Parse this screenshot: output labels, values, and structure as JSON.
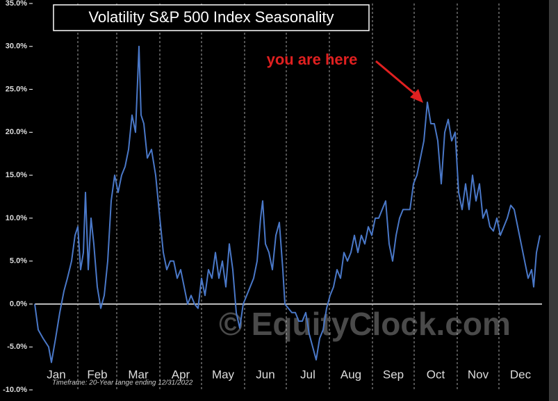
{
  "chart_data": {
    "type": "line",
    "title": "Volatility S&P 500 Index Seasonality",
    "annotation": "you are here",
    "watermark": "© EquityClock.com",
    "footnote": "Timeframe: 20-Year range ending 12/31/2022",
    "x": [
      0,
      2.5,
      6,
      10,
      12,
      15,
      18,
      21,
      23.5,
      26.5,
      29,
      31,
      33,
      35,
      36.5,
      38.5,
      40.5,
      42.5,
      45,
      47.5,
      50,
      52.5,
      55,
      57.5,
      60,
      62.5,
      65,
      67.5,
      70,
      72.5,
      75,
      76.5,
      78.5,
      81,
      84,
      87,
      90,
      92.5,
      95,
      97.5,
      100,
      102.5,
      105,
      107.5,
      110,
      112.5,
      115,
      117.5,
      120,
      122.5,
      125,
      127.5,
      130,
      132.5,
      135,
      137.5,
      140,
      142.5,
      145,
      147.5,
      150,
      152.5,
      155,
      157.5,
      160,
      162.5,
      164,
      166,
      168.5,
      171,
      173.5,
      176,
      178.5,
      180,
      182.5,
      185,
      187.5,
      190,
      192.5,
      195,
      197.5,
      200,
      202.5,
      205,
      207.5,
      210,
      212.5,
      215,
      217.5,
      220,
      222.5,
      225,
      227.5,
      230,
      232.5,
      235,
      237.5,
      240,
      242.5,
      245,
      247.5,
      250,
      252.5,
      255,
      257.5,
      260,
      262.5,
      265,
      267.5,
      270,
      272.5,
      275,
      277.5,
      280,
      282.5,
      285,
      287.5,
      290,
      292.5,
      295,
      297.5,
      300,
      302.5,
      305,
      307.5,
      310,
      312.5,
      315,
      317.5,
      320,
      322.5,
      325,
      327.5,
      330,
      332.5,
      335,
      337.5,
      340,
      342.5,
      345,
      347.5,
      350,
      352.5,
      355,
      357.5,
      359,
      361,
      363.5
    ],
    "series": [
      {
        "color": "#4a78c8",
        "values": [
          0,
          -3,
          -4,
          -5,
          -6.8,
          -4,
          -1,
          1.5,
          3,
          5,
          8,
          9,
          4,
          6,
          13,
          4,
          10,
          7,
          2,
          -0.5,
          1,
          5,
          12,
          15,
          13,
          15,
          16,
          18,
          22,
          20,
          30,
          22,
          21,
          17,
          18,
          15,
          10,
          6,
          4,
          5,
          5,
          3,
          4,
          2,
          0,
          1,
          0,
          -0.5,
          3,
          1,
          4,
          3,
          6,
          3,
          5,
          2,
          7,
          4,
          -1,
          -2.8,
          0,
          1,
          2,
          3,
          5,
          10,
          12,
          7,
          6,
          4,
          8,
          9.5,
          4,
          0,
          -0.5,
          -1,
          -1,
          -2,
          -2,
          -1,
          -3.5,
          -5,
          -6.5,
          -4,
          -3,
          -0.5,
          1,
          2,
          4,
          3,
          6,
          5,
          6,
          8,
          6,
          8,
          7,
          9,
          8,
          10,
          10,
          11,
          12,
          7,
          5,
          8,
          10,
          11,
          11,
          11,
          14,
          15,
          17,
          19,
          23.5,
          21,
          21,
          19,
          14,
          20,
          21.5,
          19,
          20,
          13,
          11,
          14,
          11,
          15,
          12,
          14,
          10,
          11,
          9,
          8.5,
          10,
          8,
          9,
          10,
          11.5,
          11,
          9,
          7,
          5,
          3,
          4,
          2,
          6,
          8
        ]
      }
    ],
    "xlim": [
      0,
      365
    ],
    "xticks": [
      {
        "value": 0,
        "label": "Jan"
      },
      {
        "value": 31,
        "label": "Feb"
      },
      {
        "value": 59,
        "label": "Mar"
      },
      {
        "value": 90,
        "label": "Apr"
      },
      {
        "value": 120,
        "label": "May"
      },
      {
        "value": 151,
        "label": "Jun"
      },
      {
        "value": 181,
        "label": "Jul"
      },
      {
        "value": 212,
        "label": "Aug"
      },
      {
        "value": 243,
        "label": "Sep"
      },
      {
        "value": 273,
        "label": "Oct"
      },
      {
        "value": 304,
        "label": "Nov"
      },
      {
        "value": 334,
        "label": "Dec"
      }
    ],
    "ylim": [
      -10,
      35
    ],
    "yticks": [
      {
        "value": -10,
        "label": "-10.0%"
      },
      {
        "value": -5,
        "label": "-5.0%"
      },
      {
        "value": 0,
        "label": "0.0%"
      },
      {
        "value": 5,
        "label": "5.0%"
      },
      {
        "value": 10,
        "label": "10.0%"
      },
      {
        "value": 15,
        "label": "15.0%"
      },
      {
        "value": 20,
        "label": "20.0%"
      },
      {
        "value": 25,
        "label": "25.0%"
      },
      {
        "value": 30,
        "label": "30.0%"
      },
      {
        "value": 35,
        "label": "35.0%"
      }
    ],
    "grid": true
  }
}
